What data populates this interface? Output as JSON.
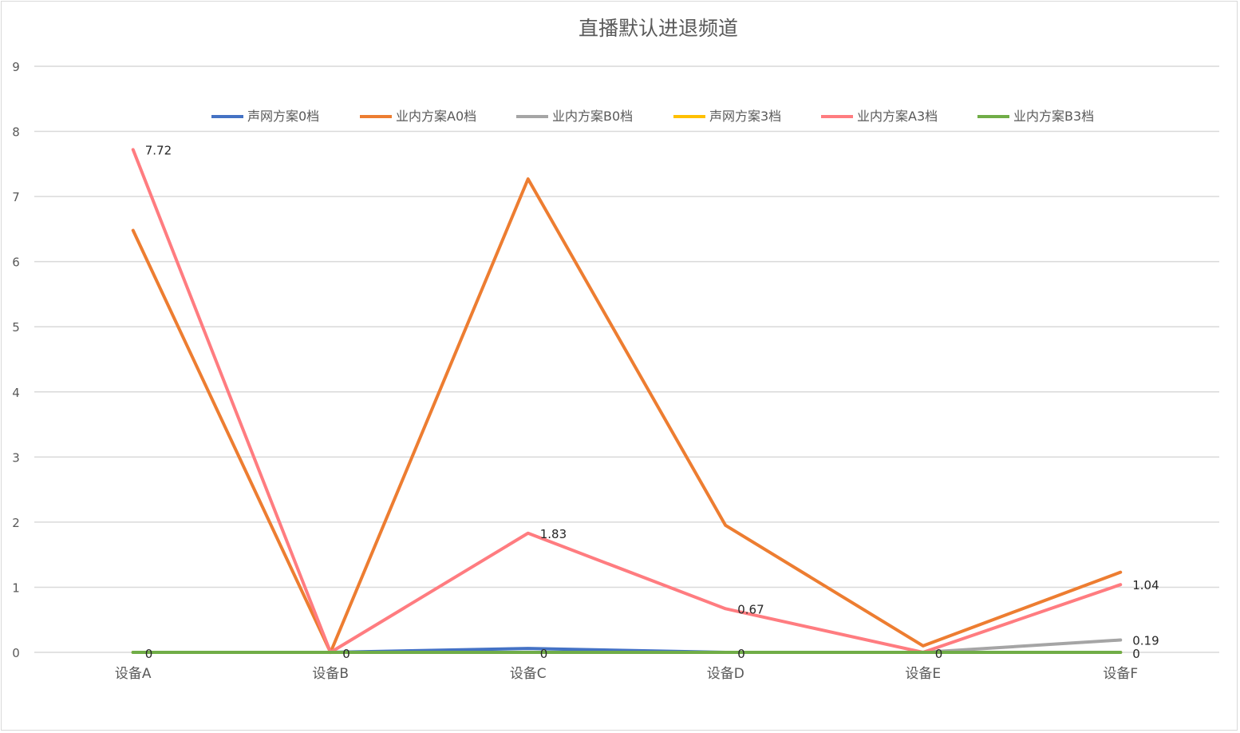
{
  "chart_data": {
    "type": "line",
    "title": "直播默认进退频道",
    "categories": [
      "设备A",
      "设备B",
      "设备C",
      "设备D",
      "设备E",
      "设备F"
    ],
    "ylim": [
      0,
      9
    ],
    "yticks": [
      "0",
      "1",
      "2",
      "3",
      "4",
      "5",
      "6",
      "7",
      "8",
      "9"
    ],
    "grid": true,
    "legend_position": "top",
    "series": [
      {
        "name": "声网方案0档",
        "color": "#4472c4",
        "values": [
          0,
          0,
          0.06,
          0,
          0,
          0
        ],
        "labels": [
          null,
          null,
          null,
          null,
          null,
          null
        ]
      },
      {
        "name": "业内方案A0档",
        "color": "#ed7d31",
        "values": [
          6.48,
          0,
          7.27,
          1.95,
          0.1,
          1.23
        ],
        "labels": [
          null,
          null,
          null,
          null,
          null,
          null
        ]
      },
      {
        "name": "业内方案B0档",
        "color": "#a5a5a5",
        "values": [
          0,
          0,
          0,
          0,
          0,
          0.19
        ],
        "labels": [
          null,
          null,
          null,
          null,
          null,
          "0.19"
        ]
      },
      {
        "name": "声网方案3档",
        "color": "#ffc000",
        "values": [
          0,
          0,
          0,
          0,
          0,
          0
        ],
        "labels": [
          null,
          null,
          null,
          null,
          null,
          null
        ]
      },
      {
        "name": "业内方案A3档",
        "color": "#ff7c80",
        "values": [
          7.72,
          0,
          1.83,
          0.67,
          0,
          1.04
        ],
        "labels": [
          "7.72",
          null,
          "1.83",
          "0.67",
          null,
          "1.04"
        ]
      },
      {
        "name": "业内方案B3档",
        "color": "#70ad47",
        "values": [
          0,
          0,
          0,
          0,
          0,
          0
        ],
        "labels": [
          "0",
          "0",
          "0",
          "0",
          "0",
          "0"
        ]
      }
    ]
  }
}
